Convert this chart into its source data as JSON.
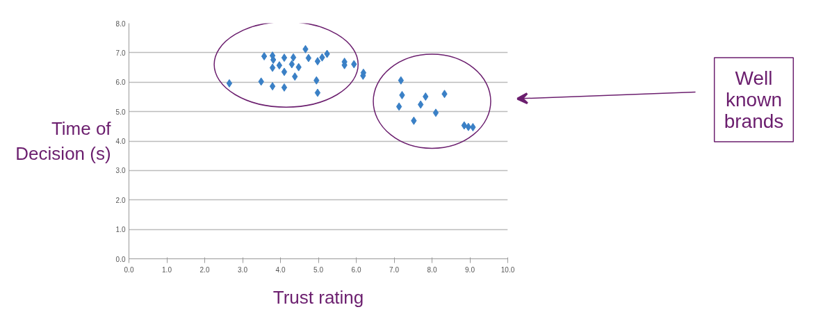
{
  "chart_data": {
    "type": "scatter",
    "xlabel": "Trust rating",
    "ylabel": "Time of Decision (s)",
    "annotations": [
      "Well known brands"
    ],
    "x": [
      2.65,
      3.49,
      3.57,
      3.79,
      3.81,
      3.79,
      3.97,
      3.79,
      4.1,
      4.1,
      4.1,
      4.34,
      4.3,
      4.48,
      4.38,
      4.66,
      4.74,
      4.98,
      4.95,
      4.98,
      5.1,
      5.23,
      5.69,
      5.69,
      5.94,
      6.19,
      6.18,
      7.18,
      7.21,
      7.13,
      7.83,
      7.7,
      8.33,
      8.1,
      7.52,
      8.85,
      8.96,
      9.08
    ],
    "values": [
      5.96,
      6.02,
      6.88,
      6.9,
      6.76,
      6.49,
      6.57,
      5.86,
      6.83,
      6.35,
      5.82,
      6.84,
      6.61,
      6.51,
      6.19,
      7.12,
      6.82,
      6.71,
      6.06,
      5.64,
      6.84,
      6.96,
      6.69,
      6.58,
      6.61,
      6.32,
      6.22,
      6.06,
      5.56,
      5.17,
      5.51,
      5.24,
      5.6,
      4.96,
      4.69,
      4.53,
      4.48,
      4.47
    ],
    "color": "#3a80c6",
    "marker": "diamond",
    "grid": "y",
    "legend": false,
    "xlim": [
      0,
      10
    ],
    "ylim": [
      0,
      8
    ],
    "xticks": [
      {
        "value": 0,
        "label": "0.0"
      },
      {
        "value": 1,
        "label": "1.0"
      },
      {
        "value": 2,
        "label": "2.0"
      },
      {
        "value": 3,
        "label": "3.0"
      },
      {
        "value": 4,
        "label": "4.0"
      },
      {
        "value": 5,
        "label": "5.0"
      },
      {
        "value": 6,
        "label": "6.0"
      },
      {
        "value": 7,
        "label": "7.0"
      },
      {
        "value": 8,
        "label": "8.0"
      },
      {
        "value": 9,
        "label": "9.0"
      },
      {
        "value": 10,
        "label": "10.0"
      }
    ],
    "yticks": [
      {
        "value": 0,
        "label": "0.0"
      },
      {
        "value": 1,
        "label": "1.0"
      },
      {
        "value": 2,
        "label": "2.0"
      },
      {
        "value": 3,
        "label": "3.0"
      },
      {
        "value": 4,
        "label": "4.0"
      },
      {
        "value": 5,
        "label": "5.0"
      },
      {
        "value": 6,
        "label": "6.0"
      },
      {
        "value": 7,
        "label": "7.0"
      },
      {
        "value": 8,
        "label": "8.0"
      }
    ]
  }
}
